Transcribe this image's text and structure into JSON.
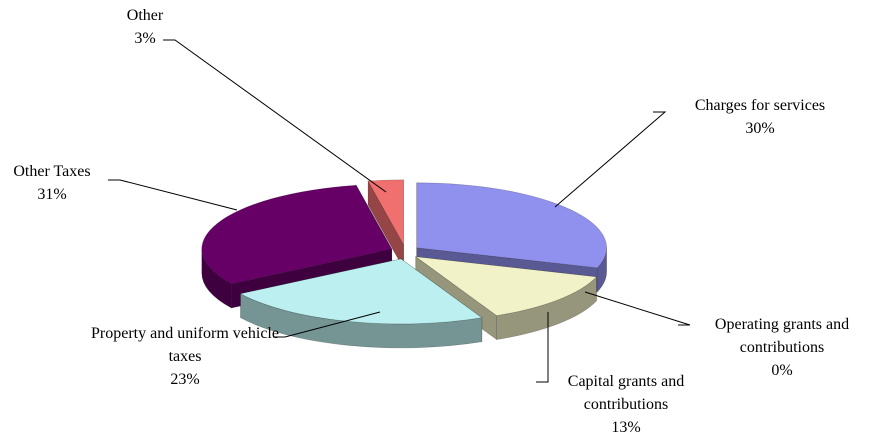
{
  "chart_data": {
    "type": "pie3d",
    "categories": [
      "Charges for services",
      "Operating grants and contributions",
      "Capital grants and contributions",
      "Property and uniform vehicle taxes",
      "Other Taxes",
      "Other"
    ],
    "values": [
      30,
      0,
      13,
      23,
      31,
      3
    ],
    "value_labels": [
      "30%",
      "0%",
      "13%",
      "23%",
      "31%",
      "3%"
    ],
    "colors": [
      "#9090ee",
      "#3a3a7a",
      "#f2f2c8",
      "#bcf0f0",
      "#660066",
      "#f07070"
    ]
  }
}
